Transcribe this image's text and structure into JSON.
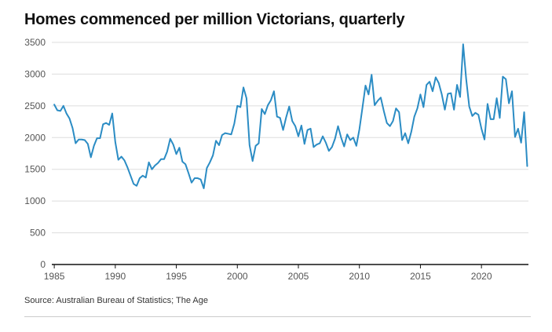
{
  "chart_data": {
    "type": "line",
    "title": "Homes commenced per million Victorians, quarterly",
    "source": "Source: Australian Bureau of Statistics; The Age",
    "xlabel": "",
    "ylabel": "",
    "xlim": [
      1984.8,
      2023.85
    ],
    "ylim": [
      0,
      3500
    ],
    "x_ticks": [
      1985,
      1990,
      1995,
      2000,
      2005,
      2010,
      2015,
      2020
    ],
    "y_ticks": [
      0,
      500,
      1000,
      1500,
      2000,
      2500,
      3000,
      3500
    ],
    "grid": "horizontal",
    "line_color": "#2b8cc4",
    "series": [
      {
        "x_start": 1985.0,
        "x_step": 0.25,
        "values": [
          2520,
          2430,
          2420,
          2500,
          2380,
          2300,
          2150,
          1910,
          1970,
          1970,
          1960,
          1900,
          1690,
          1870,
          1990,
          1990,
          2210,
          2230,
          2200,
          2380,
          1930,
          1650,
          1700,
          1640,
          1530,
          1400,
          1270,
          1240,
          1360,
          1400,
          1370,
          1610,
          1500,
          1560,
          1600,
          1660,
          1660,
          1780,
          1980,
          1890,
          1740,
          1840,
          1620,
          1580,
          1440,
          1290,
          1360,
          1360,
          1340,
          1200,
          1520,
          1610,
          1720,
          1950,
          1880,
          2040,
          2070,
          2060,
          2050,
          2220,
          2500,
          2480,
          2790,
          2620,
          1880,
          1630,
          1870,
          1910,
          2450,
          2370,
          2510,
          2590,
          2730,
          2330,
          2310,
          2120,
          2320,
          2490,
          2260,
          2180,
          2020,
          2190,
          1900,
          2120,
          2140,
          1850,
          1890,
          1910,
          2020,
          1920,
          1790,
          1850,
          1980,
          2180,
          2000,
          1860,
          2050,
          1960,
          2000,
          1870,
          2130,
          2470,
          2820,
          2680,
          2990,
          2510,
          2580,
          2630,
          2420,
          2230,
          2180,
          2260,
          2460,
          2400,
          1960,
          2070,
          1910,
          2090,
          2330,
          2460,
          2680,
          2480,
          2830,
          2880,
          2730,
          2950,
          2860,
          2680,
          2440,
          2690,
          2700,
          2440,
          2830,
          2640,
          3470,
          2920,
          2490,
          2340,
          2390,
          2360,
          2140,
          1970,
          2530,
          2290,
          2290,
          2620,
          2310,
          2960,
          2920,
          2540,
          2730,
          2010,
          2140,
          1920,
          2400,
          1550
        ]
      }
    ]
  }
}
